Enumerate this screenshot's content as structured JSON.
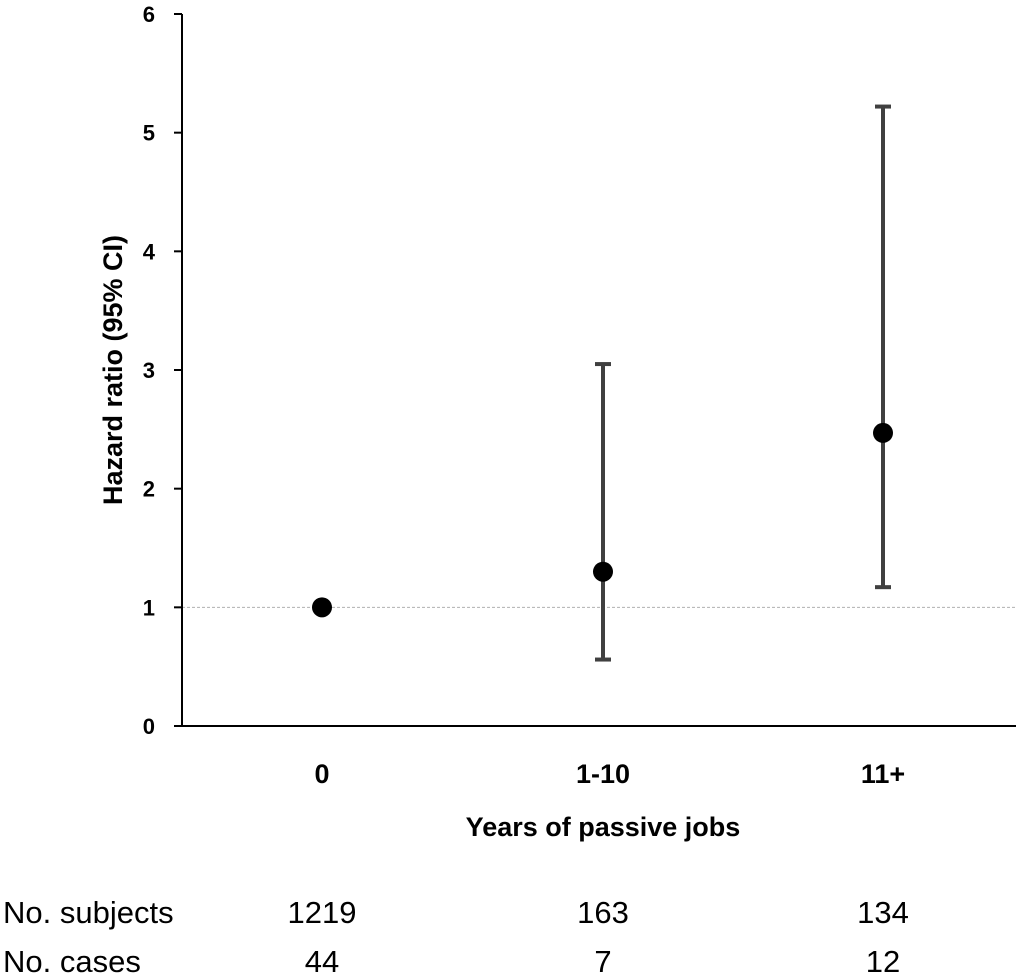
{
  "chart_data": {
    "type": "scatter",
    "subtype": "point estimates with 95% CI error bars",
    "title": "",
    "xlabel": "Years of passive jobs",
    "ylabel": "Hazard ratio (95% CI)",
    "categories": [
      "0",
      "1-10",
      "11+"
    ],
    "ylim": [
      0,
      6
    ],
    "yticks": [
      "0",
      "1",
      "2",
      "3",
      "4",
      "5",
      "6"
    ],
    "reference_line": 1,
    "grid": false,
    "legend": "none",
    "series": [
      {
        "values": [
          1.0,
          1.3,
          2.47
        ],
        "ci_lower": [
          null,
          0.56,
          1.17
        ],
        "ci_upper": [
          null,
          3.05,
          5.22
        ]
      }
    ],
    "colors": {
      "marker": "#000000",
      "errorbar": "#404040",
      "reference": "#b0b0b0",
      "axis": "#000000"
    }
  },
  "table": {
    "rows": [
      {
        "label": "No. subjects",
        "values": [
          "1219",
          "163",
          "134"
        ]
      },
      {
        "label": "No. cases",
        "values": [
          "44",
          "7",
          "12"
        ]
      }
    ]
  }
}
